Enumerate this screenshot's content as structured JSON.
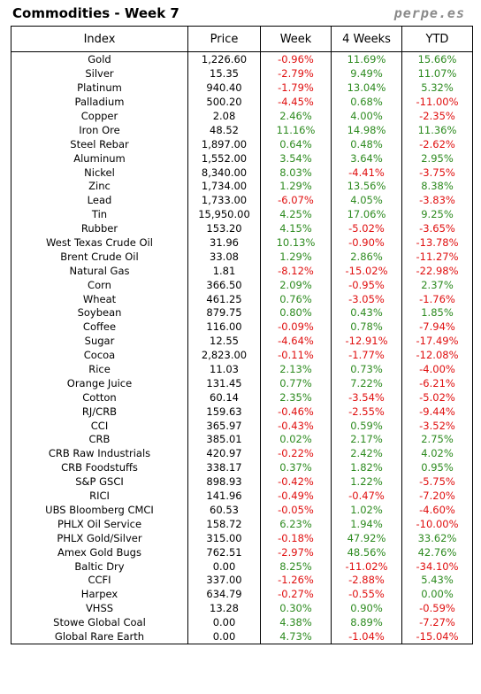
{
  "header": {
    "title": "Commodities - Week 7",
    "brand": "perpe.es"
  },
  "columns": [
    "Index",
    "Price",
    "Week",
    "4 Weeks",
    "YTD"
  ],
  "rows": [
    [
      "Gold",
      "1,226.60",
      "-0.96%",
      "11.69%",
      "15.66%"
    ],
    [
      "Silver",
      "15.35",
      "-2.79%",
      "9.49%",
      "11.07%"
    ],
    [
      "Platinum",
      "940.40",
      "-1.79%",
      "13.04%",
      "5.32%"
    ],
    [
      "Palladium",
      "500.20",
      "-4.45%",
      "0.68%",
      "-11.00%"
    ],
    [
      "Copper",
      "2.08",
      "2.46%",
      "4.00%",
      "-2.35%"
    ],
    [
      "Iron Ore",
      "48.52",
      "11.16%",
      "14.98%",
      "11.36%"
    ],
    [
      "Steel Rebar",
      "1,897.00",
      "0.64%",
      "0.48%",
      "-2.62%"
    ],
    [
      "Aluminum",
      "1,552.00",
      "3.54%",
      "3.64%",
      "2.95%"
    ],
    [
      "Nickel",
      "8,340.00",
      "8.03%",
      "-4.41%",
      "-3.75%"
    ],
    [
      "Zinc",
      "1,734.00",
      "1.29%",
      "13.56%",
      "8.38%"
    ],
    [
      "Lead",
      "1,733.00",
      "-6.07%",
      "4.05%",
      "-3.83%"
    ],
    [
      "Tin",
      "15,950.00",
      "4.25%",
      "17.06%",
      "9.25%"
    ],
    [
      "Rubber",
      "153.20",
      "4.15%",
      "-5.02%",
      "-3.65%"
    ],
    [
      "West Texas Crude Oil",
      "31.96",
      "10.13%",
      "-0.90%",
      "-13.78%"
    ],
    [
      "Brent Crude Oil",
      "33.08",
      "1.29%",
      "2.86%",
      "-11.27%"
    ],
    [
      "Natural Gas",
      "1.81",
      "-8.12%",
      "-15.02%",
      "-22.98%"
    ],
    [
      "Corn",
      "366.50",
      "2.09%",
      "-0.95%",
      "2.37%"
    ],
    [
      "Wheat",
      "461.25",
      "0.76%",
      "-3.05%",
      "-1.76%"
    ],
    [
      "Soybean",
      "879.75",
      "0.80%",
      "0.43%",
      "1.85%"
    ],
    [
      "Coffee",
      "116.00",
      "-0.09%",
      "0.78%",
      "-7.94%"
    ],
    [
      "Sugar",
      "12.55",
      "-4.64%",
      "-12.91%",
      "-17.49%"
    ],
    [
      "Cocoa",
      "2,823.00",
      "-0.11%",
      "-1.77%",
      "-12.08%"
    ],
    [
      "Rice",
      "11.03",
      "2.13%",
      "0.73%",
      "-4.00%"
    ],
    [
      "Orange Juice",
      "131.45",
      "0.77%",
      "7.22%",
      "-6.21%"
    ],
    [
      "Cotton",
      "60.14",
      "2.35%",
      "-3.54%",
      "-5.02%"
    ],
    [
      "RJ/CRB",
      "159.63",
      "-0.46%",
      "-2.55%",
      "-9.44%"
    ],
    [
      "CCI",
      "365.97",
      "-0.43%",
      "0.59%",
      "-3.52%"
    ],
    [
      "CRB",
      "385.01",
      "0.02%",
      "2.17%",
      "2.75%"
    ],
    [
      "CRB Raw Industrials",
      "420.97",
      "-0.22%",
      "2.42%",
      "4.02%"
    ],
    [
      "CRB Foodstuffs",
      "338.17",
      "0.37%",
      "1.82%",
      "0.95%"
    ],
    [
      "S&P GSCI",
      "898.93",
      "-0.42%",
      "1.22%",
      "-5.75%"
    ],
    [
      "RICI",
      "141.96",
      "-0.49%",
      "-0.47%",
      "-7.20%"
    ],
    [
      "UBS Bloomberg CMCI",
      "60.53",
      "-0.05%",
      "1.02%",
      "-4.60%"
    ],
    [
      "PHLX Oil Service",
      "158.72",
      "6.23%",
      "1.94%",
      "-10.00%"
    ],
    [
      "PHLX Gold/Silver",
      "315.00",
      "-0.18%",
      "47.92%",
      "33.62%"
    ],
    [
      "Amex Gold Bugs",
      "762.51",
      "-2.97%",
      "48.56%",
      "42.76%"
    ],
    [
      "Baltic Dry",
      "0.00",
      "8.25%",
      "-11.02%",
      "-34.10%"
    ],
    [
      "CCFI",
      "337.00",
      "-1.26%",
      "-2.88%",
      "5.43%"
    ],
    [
      "Harpex",
      "634.79",
      "-0.27%",
      "-0.55%",
      "0.00%"
    ],
    [
      "VHSS",
      "13.28",
      "0.30%",
      "0.90%",
      "-0.59%"
    ],
    [
      "Stowe Global Coal",
      "0.00",
      "4.38%",
      "8.89%",
      "-7.27%"
    ],
    [
      "Global Rare Earth",
      "0.00",
      "4.73%",
      "-1.04%",
      "-15.04%"
    ]
  ],
  "colors": {
    "positive": "#2e8b20",
    "negative": "#e01010",
    "brand": "#8a8a8a"
  }
}
